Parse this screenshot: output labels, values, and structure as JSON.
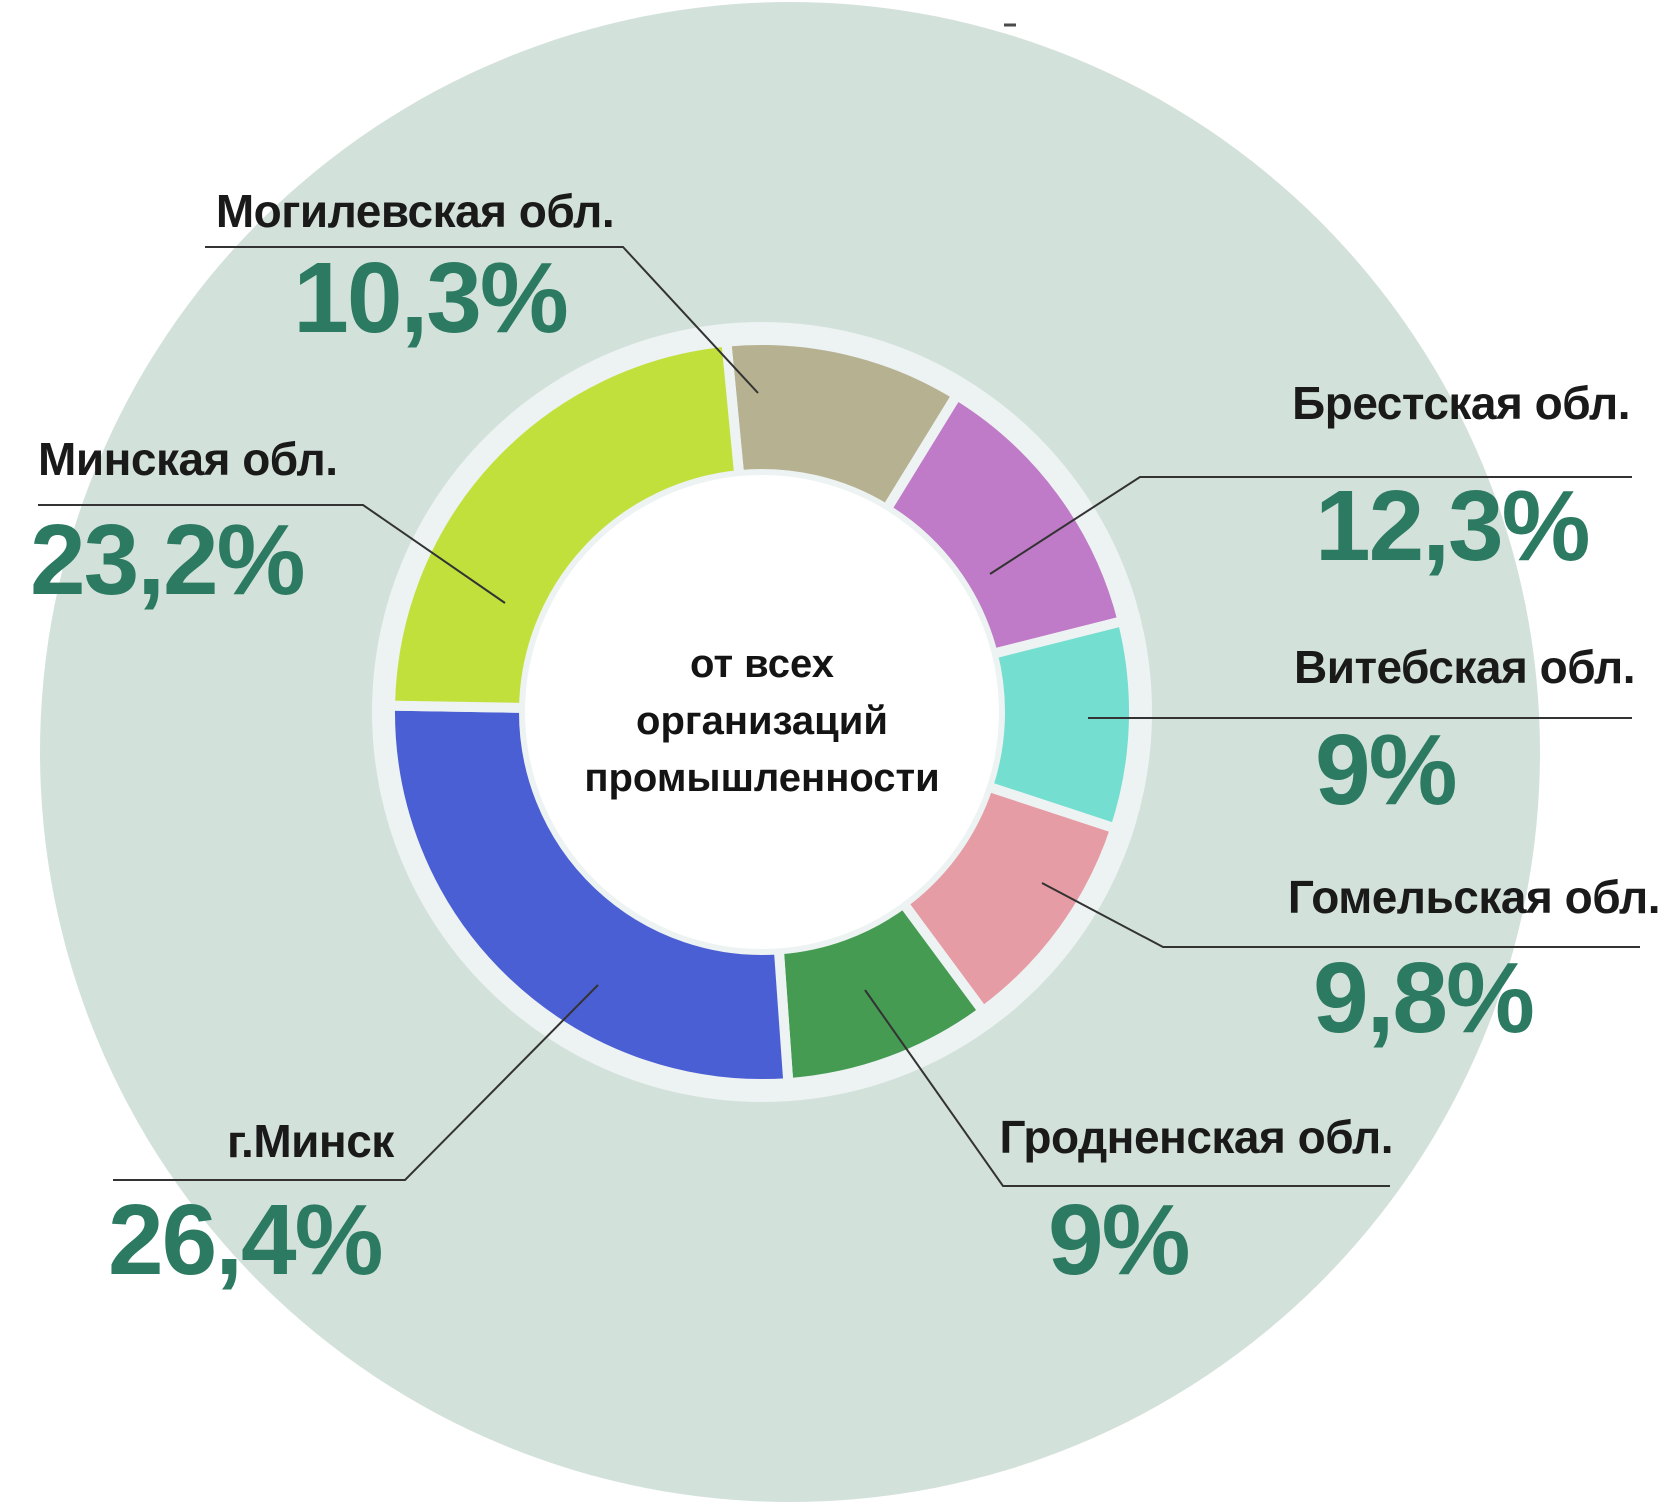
{
  "chart_data": {
    "type": "pie",
    "variant": "donut",
    "center_label": "от всех организаций промышленности",
    "center_lines": [
      "от всех",
      "организаций",
      "промышленности"
    ],
    "unit": "%",
    "start_angle_deg": -5.5,
    "legend_position": "callouts-around-donut",
    "grid": false,
    "segments": [
      {
        "label": "Могилевская обл.",
        "value": 10.3,
        "display": "10,3%",
        "color": "#b5b191"
      },
      {
        "label": "Брестская обл.",
        "value": 12.3,
        "display": "12,3%",
        "color": "#bf7bc7"
      },
      {
        "label": "Витебская обл.",
        "value": 9.0,
        "display": "9%",
        "color": "#74ded1"
      },
      {
        "label": "Гомельская обл.",
        "value": 9.8,
        "display": "9,8%",
        "color": "#e59ca4"
      },
      {
        "label": "Гродненская обл.",
        "value": 9.0,
        "display": "9%",
        "color": "#449b51"
      },
      {
        "label": "г.Минск",
        "value": 26.4,
        "display": "26,4%",
        "color": "#4b5fd5"
      },
      {
        "label": "Минская обл.",
        "value": 23.2,
        "display": "23,2%",
        "color": "#c2e03c"
      }
    ]
  },
  "styles": {
    "background_circle_color": "#d3e1db",
    "gap_color": "#edf2f2",
    "value_color": "#2b7a61",
    "label_color": "#1a1a1a",
    "leader_line_color": "#333333"
  }
}
